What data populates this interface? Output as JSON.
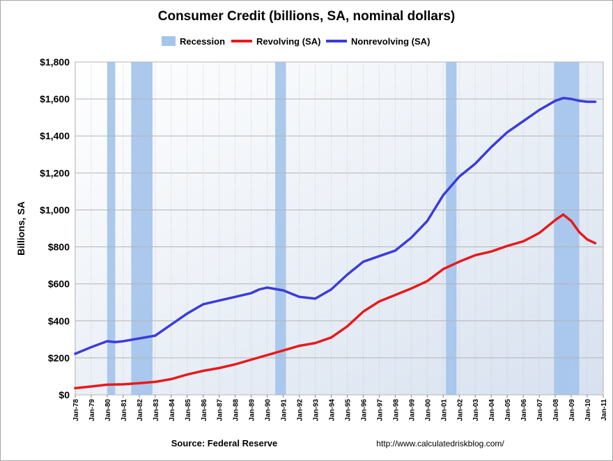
{
  "chart_data": {
    "type": "line",
    "title": "Consumer Credit (billions, SA, nominal dollars)",
    "ylabel": "Billions, SA",
    "source": "Source: Federal Reserve",
    "url": "http://www.calculatedriskblog.com/",
    "ylim": [
      0,
      1800
    ],
    "y_ticks": [
      0,
      200,
      400,
      600,
      800,
      1000,
      1200,
      1400,
      1600,
      1800
    ],
    "y_tick_labels": [
      "$0",
      "$200",
      "$400",
      "$600",
      "$800",
      "$1,000",
      "$1,200",
      "$1,400",
      "$1,600",
      "$1,800"
    ],
    "xlim": [
      1978.0,
      2011.0
    ],
    "x_tick_labels": [
      "Jan-78",
      "Jan-79",
      "Jan-80",
      "Jan-81",
      "Jan-82",
      "Jan-83",
      "Jan-84",
      "Jan-85",
      "Jan-86",
      "Jan-87",
      "Jan-88",
      "Jan-89",
      "Jan-90",
      "Jan-91",
      "Jan-92",
      "Jan-93",
      "Jan-94",
      "Jan-95",
      "Jan-96",
      "Jan-97",
      "Jan-98",
      "Jan-99",
      "Jan-00",
      "Jan-01",
      "Jan-02",
      "Jan-03",
      "Jan-04",
      "Jan-05",
      "Jan-06",
      "Jan-07",
      "Jan-08",
      "Jan-09",
      "Jan-10",
      "Jan-11"
    ],
    "grid": true,
    "legend_position": "top",
    "legend": [
      {
        "name": "Recession",
        "kind": "band",
        "color": "#a6c5ec"
      },
      {
        "name": "Revolving (SA)",
        "kind": "line",
        "color": "#e8191c"
      },
      {
        "name": "Nonrevolving (SA)",
        "kind": "line",
        "color": "#3b3bdc"
      }
    ],
    "recessions": [
      {
        "start": 1980.0,
        "end": 1980.5
      },
      {
        "start": 1981.5,
        "end": 1982.83
      },
      {
        "start": 1990.5,
        "end": 1991.17
      },
      {
        "start": 2001.17,
        "end": 2001.83
      },
      {
        "start": 2007.92,
        "end": 2009.5
      }
    ],
    "series": [
      {
        "name": "Revolving (SA)",
        "color": "#e8191c",
        "x": [
          1978.0,
          1979.0,
          1980.0,
          1981.0,
          1982.0,
          1983.0,
          1984.0,
          1985.0,
          1986.0,
          1987.0,
          1988.0,
          1989.0,
          1990.0,
          1991.0,
          1992.0,
          1993.0,
          1994.0,
          1995.0,
          1996.0,
          1997.0,
          1998.0,
          1999.0,
          2000.0,
          2001.0,
          2002.0,
          2003.0,
          2004.0,
          2005.0,
          2006.0,
          2007.0,
          2008.0,
          2008.5,
          2009.0,
          2009.5,
          2010.0,
          2010.5
        ],
        "values": [
          36,
          45,
          55,
          57,
          63,
          70,
          85,
          110,
          130,
          145,
          165,
          190,
          215,
          240,
          265,
          280,
          310,
          370,
          450,
          505,
          540,
          575,
          615,
          680,
          720,
          755,
          775,
          805,
          830,
          875,
          945,
          975,
          940,
          880,
          840,
          820
        ]
      },
      {
        "name": "Nonrevolving (SA)",
        "color": "#3b3bdc",
        "x": [
          1978.0,
          1979.0,
          1980.0,
          1980.5,
          1981.0,
          1982.0,
          1983.0,
          1984.0,
          1985.0,
          1986.0,
          1987.0,
          1988.0,
          1989.0,
          1989.5,
          1990.0,
          1991.0,
          1992.0,
          1993.0,
          1994.0,
          1995.0,
          1996.0,
          1997.0,
          1998.0,
          1999.0,
          2000.0,
          2001.0,
          2002.0,
          2003.0,
          2004.0,
          2005.0,
          2006.0,
          2007.0,
          2008.0,
          2008.5,
          2009.0,
          2009.5,
          2010.0,
          2010.5
        ],
        "values": [
          222,
          258,
          290,
          285,
          290,
          305,
          320,
          380,
          440,
          490,
          510,
          530,
          550,
          570,
          580,
          565,
          530,
          520,
          570,
          650,
          720,
          750,
          780,
          850,
          940,
          1080,
          1180,
          1250,
          1340,
          1420,
          1480,
          1540,
          1590,
          1605,
          1600,
          1590,
          1585,
          1585
        ]
      }
    ]
  }
}
